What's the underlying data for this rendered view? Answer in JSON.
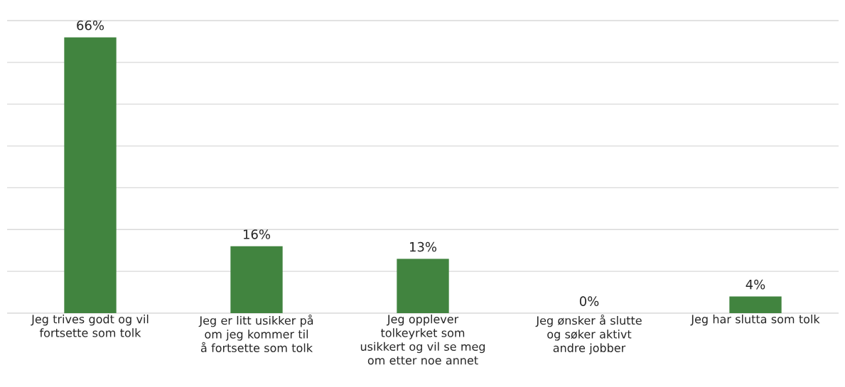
{
  "chart_data": {
    "type": "bar",
    "categories": [
      "Jeg trives godt og vil fortsette som tolk",
      "Jeg er litt usikker på om jeg kommer til å fortsette som tolk",
      "Jeg opplever tolkeyrket som usikkert og vil se meg om etter noe annet",
      "Jeg ønsker å slutte og søker aktivt andre jobber",
      "Jeg har slutta som tolk"
    ],
    "values": [
      66,
      16,
      13,
      0,
      4
    ],
    "value_labels": [
      "66%",
      "16%",
      "13%",
      "0%",
      "4%"
    ],
    "color": "#41843f",
    "ylim": [
      0,
      70
    ],
    "yticks": [
      0,
      10,
      20,
      30,
      40,
      50,
      60,
      70
    ],
    "grid": "y",
    "tick_labels": "x"
  }
}
